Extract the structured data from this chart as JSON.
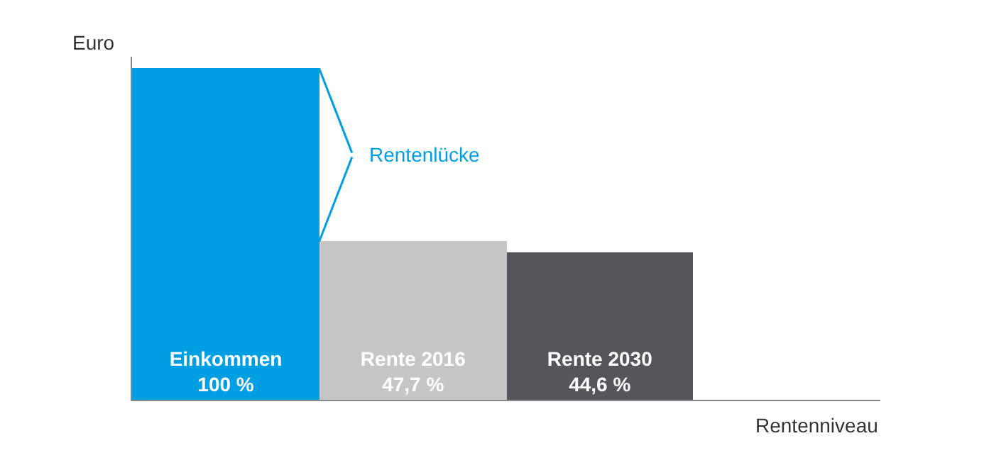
{
  "chart_data": {
    "type": "bar",
    "xlabel": "Rentenniveau",
    "ylabel": "Euro",
    "categories": [
      "Einkommen",
      "Rente 2016",
      "Rente 2030"
    ],
    "values": [
      100,
      47.7,
      44.6
    ],
    "value_labels": [
      "100 %",
      "47,7 %",
      "44,6 %"
    ],
    "colors": [
      "#009fe3",
      "#c6c6c6",
      "#55565a"
    ],
    "annotations": [
      "Rentenlücke"
    ],
    "tick_labels": false
  }
}
